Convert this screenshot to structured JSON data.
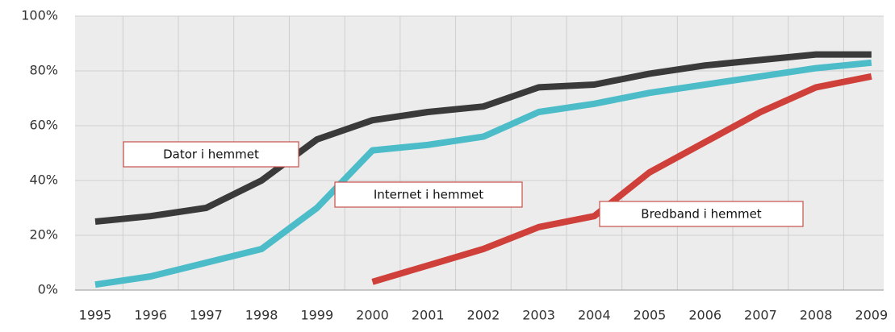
{
  "chart_data": {
    "type": "line",
    "categories": [
      "1995",
      "1996",
      "1997",
      "1998",
      "1999",
      "2000",
      "2001",
      "2002",
      "2003",
      "2004",
      "2005",
      "2006",
      "2007",
      "2008",
      "2009"
    ],
    "series": [
      {
        "name": "Dator i hemmet",
        "color": "#3a3a3a",
        "values": [
          25,
          27,
          30,
          40,
          55,
          62,
          65,
          67,
          74,
          75,
          79,
          82,
          84,
          86,
          86
        ]
      },
      {
        "name": "Internet i hemmet",
        "color": "#4bbcc8",
        "values": [
          2,
          5,
          10,
          15,
          30,
          51,
          53,
          56,
          65,
          68,
          72,
          75,
          78,
          81,
          83
        ]
      },
      {
        "name": "Bredband i hemmet",
        "color": "#d0403a",
        "values": [
          null,
          null,
          null,
          null,
          null,
          3,
          9,
          15,
          23,
          27,
          43,
          54,
          65,
          74,
          78
        ]
      }
    ],
    "ylim": [
      0,
      100
    ],
    "yticks": [
      {
        "value": 0,
        "label": "0%"
      },
      {
        "value": 20,
        "label": "20%"
      },
      {
        "value": 40,
        "label": "40%"
      },
      {
        "value": 60,
        "label": "60%"
      },
      {
        "value": 80,
        "label": "80%"
      },
      {
        "value": 100,
        "label": "100%"
      }
    ],
    "grid": true
  }
}
